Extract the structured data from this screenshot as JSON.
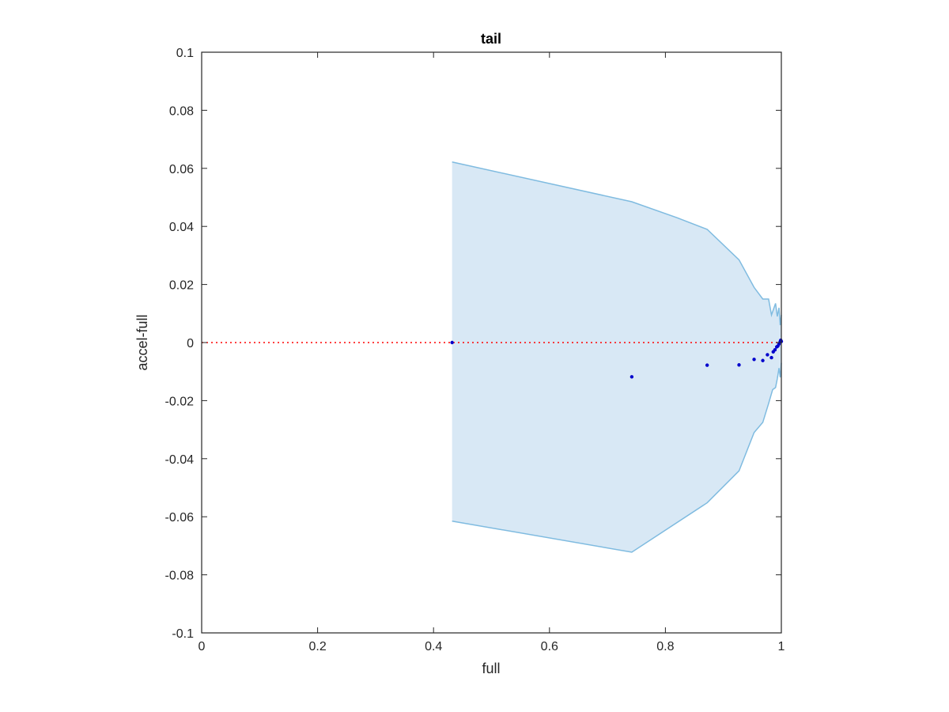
{
  "chart_data": {
    "type": "area",
    "title": "tail",
    "xlabel": "full",
    "ylabel": "accel-full",
    "xlim": [
      0,
      1
    ],
    "ylim": [
      -0.1,
      0.1
    ],
    "xticks": [
      0,
      0.2,
      0.4,
      0.6,
      0.8,
      1
    ],
    "xtick_labels": [
      "0",
      "0.2",
      "0.4",
      "0.6",
      "0.8",
      "1"
    ],
    "yticks": [
      -0.1,
      -0.08,
      -0.06,
      -0.04,
      -0.02,
      0,
      0.02,
      0.04,
      0.06,
      0.08,
      0.1
    ],
    "ytick_labels": [
      "-0.1",
      "-0.08",
      "-0.06",
      "-0.04",
      "-0.02",
      "0",
      "0.02",
      "0.04",
      "0.06",
      "0.08",
      "0.1"
    ],
    "grid": false,
    "band": {
      "color": "#d8e8f5",
      "edge_color": "#7fbbe0",
      "upper": [
        [
          0.432,
          0.0622
        ],
        [
          0.742,
          0.0485
        ],
        [
          0.82,
          0.043
        ],
        [
          0.872,
          0.039
        ],
        [
          0.927,
          0.0285
        ],
        [
          0.953,
          0.019
        ],
        [
          0.968,
          0.015
        ],
        [
          0.978,
          0.015
        ],
        [
          0.983,
          0.0095
        ],
        [
          0.99,
          0.0135
        ],
        [
          0.993,
          0.009
        ],
        [
          0.996,
          0.012
        ],
        [
          0.998,
          0.006
        ],
        [
          1.0,
          0.0095
        ]
      ],
      "lower": [
        [
          0.432,
          -0.0615
        ],
        [
          0.742,
          -0.0722
        ],
        [
          0.872,
          -0.0552
        ],
        [
          0.927,
          -0.0442
        ],
        [
          0.953,
          -0.031
        ],
        [
          0.968,
          -0.0275
        ],
        [
          0.978,
          -0.021
        ],
        [
          0.985,
          -0.0162
        ],
        [
          0.99,
          -0.0155
        ],
        [
          0.993,
          -0.0125
        ],
        [
          0.996,
          -0.0088
        ],
        [
          0.998,
          -0.012
        ],
        [
          1.0,
          -0.007
        ]
      ]
    },
    "reference_line": {
      "y": 0,
      "color": "#ff0000",
      "style": "dotted"
    },
    "points": {
      "color": "#0000cc",
      "values": [
        [
          0.432,
          0.0
        ],
        [
          0.742,
          -0.0118
        ],
        [
          0.872,
          -0.0078
        ],
        [
          0.927,
          -0.0077
        ],
        [
          0.953,
          -0.0058
        ],
        [
          0.968,
          -0.0062
        ],
        [
          0.976,
          -0.0042
        ],
        [
          0.983,
          -0.0052
        ],
        [
          0.986,
          -0.0032
        ],
        [
          0.989,
          -0.0025
        ],
        [
          0.992,
          -0.0015
        ],
        [
          0.994,
          -0.0012
        ],
        [
          0.996,
          -0.0005
        ],
        [
          0.998,
          0.0003
        ],
        [
          0.999,
          0.0008
        ],
        [
          1.0,
          0.0004
        ]
      ]
    },
    "axis_color": "#262626"
  }
}
